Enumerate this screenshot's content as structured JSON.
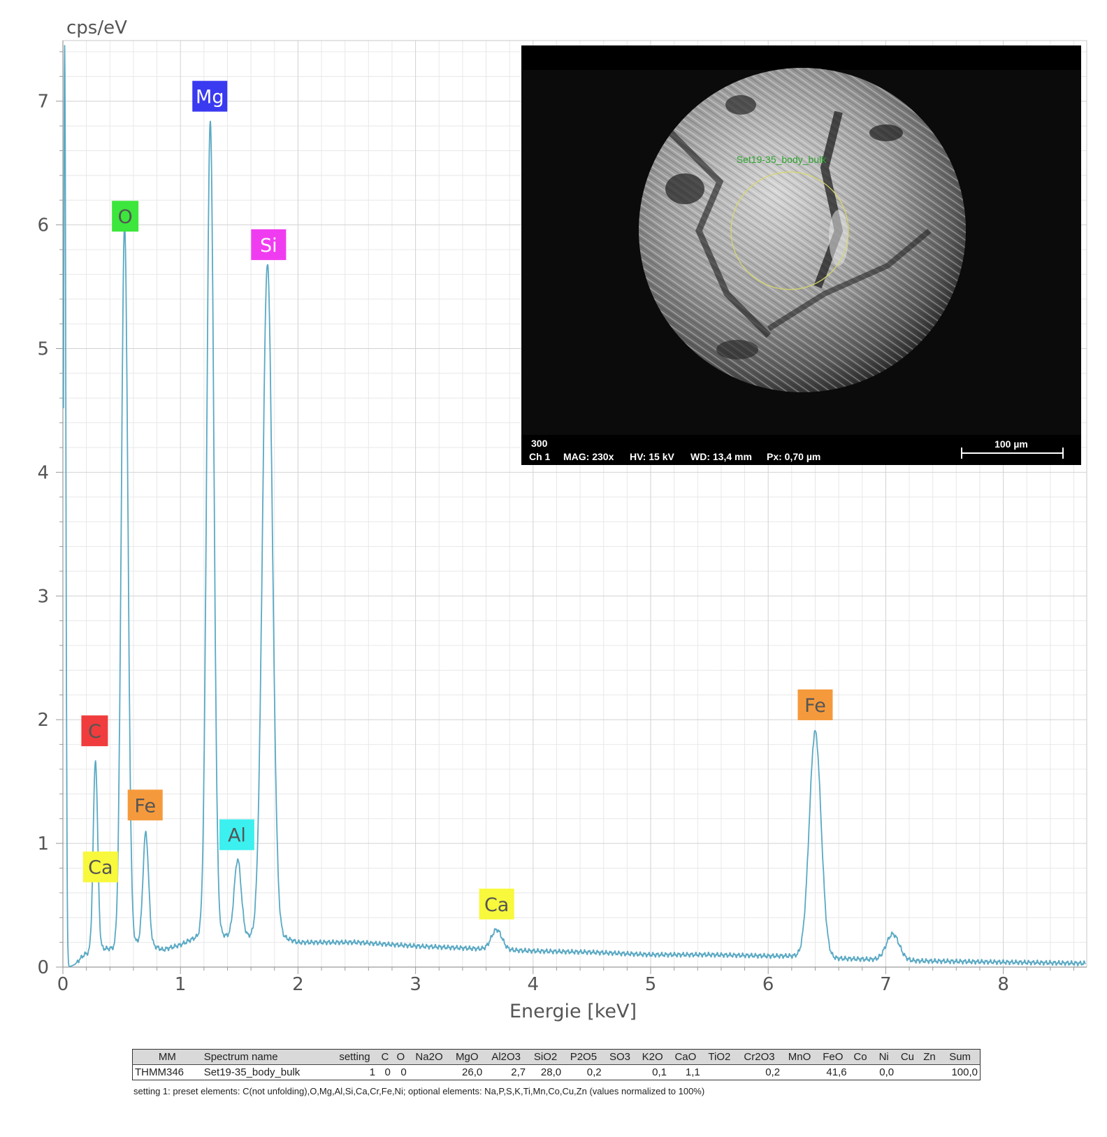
{
  "chart_data": {
    "type": "line",
    "ylabel": "cps/eV",
    "xlabel": "Energie [keV]",
    "xlim": [
      0,
      8.7
    ],
    "ylim": [
      0,
      7.5
    ],
    "grid": true,
    "x_ticks": [
      0,
      1,
      2,
      3,
      4,
      5,
      6,
      7,
      8
    ],
    "y_ticks": [
      0,
      1,
      2,
      3,
      4,
      5,
      6,
      7
    ],
    "line_color": "#5aa9c4",
    "baseline": [
      [
        0.05,
        0.0
      ],
      [
        0.1,
        0.02
      ],
      [
        0.18,
        0.1
      ],
      [
        0.3,
        0.15
      ],
      [
        0.45,
        0.15
      ],
      [
        0.6,
        0.2
      ],
      [
        0.75,
        0.18
      ],
      [
        0.85,
        0.14
      ],
      [
        1.0,
        0.18
      ],
      [
        1.15,
        0.25
      ],
      [
        1.22,
        0.3
      ],
      [
        1.4,
        0.25
      ],
      [
        1.6,
        0.25
      ],
      [
        1.85,
        0.25
      ],
      [
        2.0,
        0.2
      ],
      [
        2.5,
        0.2
      ],
      [
        3.0,
        0.17
      ],
      [
        3.5,
        0.15
      ],
      [
        4.0,
        0.13
      ],
      [
        4.5,
        0.12
      ],
      [
        5.0,
        0.1
      ],
      [
        5.5,
        0.1
      ],
      [
        6.0,
        0.09
      ],
      [
        6.3,
        0.09
      ],
      [
        6.6,
        0.07
      ],
      [
        7.3,
        0.05
      ],
      [
        8.0,
        0.04
      ],
      [
        8.7,
        0.03
      ]
    ],
    "peaks": [
      {
        "center": 0.015,
        "height": 7.45,
        "width": 0.01
      },
      {
        "center": 0.277,
        "height": 1.53,
        "width": 0.019
      },
      {
        "center": 0.525,
        "height": 5.83,
        "width": 0.028
      },
      {
        "center": 0.705,
        "height": 0.9,
        "width": 0.024
      },
      {
        "center": 1.254,
        "height": 6.55,
        "width": 0.03
      },
      {
        "center": 1.487,
        "height": 0.62,
        "width": 0.03
      },
      {
        "center": 1.74,
        "height": 5.44,
        "width": 0.042
      },
      {
        "center": 3.69,
        "height": 0.16,
        "width": 0.045
      },
      {
        "center": 6.4,
        "height": 1.82,
        "width": 0.05
      },
      {
        "center": 7.06,
        "height": 0.21,
        "width": 0.055
      }
    ],
    "element_labels": [
      {
        "text": "Mg",
        "x": 1.25,
        "y": 7.04,
        "color": "#3a3af0",
        "text_color": "#ffffff"
      },
      {
        "text": "O",
        "x": 0.53,
        "y": 6.07,
        "color": "#3ce63c",
        "text_color": "#555555"
      },
      {
        "text": "Si",
        "x": 1.75,
        "y": 5.84,
        "color": "#f03cf0",
        "text_color": "#ffffff"
      },
      {
        "text": "C",
        "x": 0.27,
        "y": 1.91,
        "color": "#f03c3c",
        "text_color": "#555555"
      },
      {
        "text": "Fe",
        "x": 0.7,
        "y": 1.31,
        "color": "#f59a3c",
        "text_color": "#555555"
      },
      {
        "text": "Al",
        "x": 1.48,
        "y": 1.07,
        "color": "#3cf0f0",
        "text_color": "#555555"
      },
      {
        "text": "Ca",
        "x": 0.32,
        "y": 0.81,
        "color": "#f8f83c",
        "text_color": "#555555"
      },
      {
        "text": "Ca",
        "x": 3.69,
        "y": 0.51,
        "color": "#f8f83c",
        "text_color": "#555555"
      },
      {
        "text": "Fe",
        "x": 6.4,
        "y": 2.12,
        "color": "#f59a3c",
        "text_color": "#555555"
      }
    ]
  },
  "sem_image": {
    "region_label": "Set19-35_body_bulk",
    "line1": "300",
    "channel": "Ch 1",
    "mag": "MAG: 230x",
    "hv": "HV: 15 kV",
    "wd": "WD: 13,4 mm",
    "px": "Px: 0,70 µm",
    "scale_label": "100 µm",
    "region_label_color": "#2fa32f",
    "circle_color": "#d8d86a"
  },
  "table": {
    "headers": [
      "MM",
      "Spectrum name",
      "setting",
      "C",
      "O",
      "Na2O",
      "MgO",
      "Al2O3",
      "SiO2",
      "P2O5",
      "SO3",
      "K2O",
      "CaO",
      "TiO2",
      "Cr2O3",
      "MnO",
      "FeO",
      "Co",
      "Ni",
      "Cu",
      "Zn",
      "Sum"
    ],
    "rows": [
      [
        "THMM346",
        "Set19-35_body_bulk",
        "1",
        "0",
        "0",
        "",
        "26,0",
        "2,7",
        "28,0",
        "0,2",
        "",
        "0,1",
        "1,1",
        "",
        "0,2",
        "",
        "41,6",
        "",
        "0,0",
        "",
        "",
        "100,0"
      ]
    ],
    "footnote": "setting 1: preset elements: C(not unfolding),O,Mg,Al,Si,Ca,Cr,Fe,Ni; optional elements: Na,P,S,K,Ti,Mn,Co,Cu,Zn (values normalized to 100%)"
  }
}
